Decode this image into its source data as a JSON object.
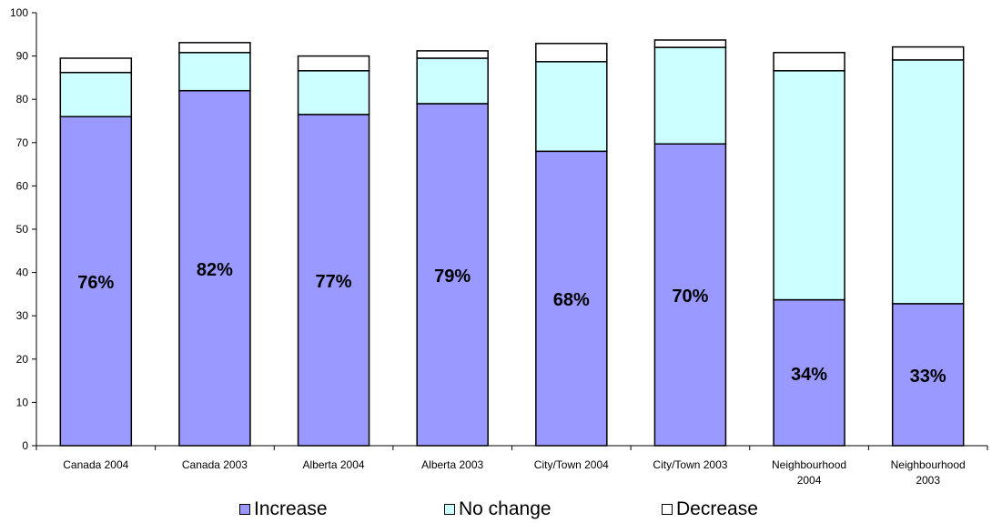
{
  "chart_data": {
    "type": "bar",
    "stacked": true,
    "categories": [
      [
        "Canada 2004"
      ],
      [
        "Canada 2003"
      ],
      [
        "Alberta 2004"
      ],
      [
        "Alberta 2003"
      ],
      [
        "City/Town 2004"
      ],
      [
        "City/Town 2003"
      ],
      [
        "Neighbourhood",
        "2004"
      ],
      [
        "Neighbourhood",
        "2003"
      ]
    ],
    "series": [
      {
        "name": "Increase",
        "color": "#9999FF",
        "values": [
          76,
          82,
          76.5,
          79,
          68,
          69.7,
          33.7,
          32.8
        ]
      },
      {
        "name": "No change",
        "color": "#CCFFFF",
        "values": [
          10.2,
          8.8,
          10.1,
          10.5,
          20.7,
          22.3,
          52.9,
          56.3
        ]
      },
      {
        "name": "Decrease",
        "color": "#FFFFFF",
        "values": [
          3.3,
          2.3,
          3.4,
          1.7,
          4.2,
          1.7,
          4.2,
          3.0
        ]
      }
    ],
    "data_labels": [
      "76%",
      "82%",
      "77%",
      "79%",
      "68%",
      "70%",
      "34%",
      "33%"
    ],
    "yticks": [
      "0",
      "10",
      "20",
      "30",
      "40",
      "50",
      "60",
      "70",
      "80",
      "90",
      "100"
    ],
    "ylim": [
      0,
      100
    ],
    "grid": false,
    "legend_position": "bottom"
  }
}
